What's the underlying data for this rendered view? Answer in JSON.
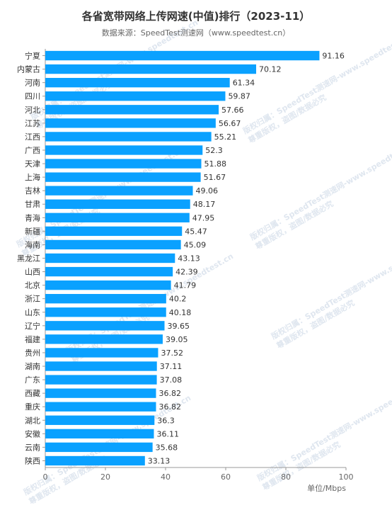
{
  "header": {
    "title": "各省宽带网络上传网速(中值)排行（2023-11）",
    "subtitle": "数据来源：SpeedTest测速网（www.speedtest.cn）"
  },
  "watermark": {
    "line1": "版权归属：SpeedTest测速网-www.speedtest.cn",
    "line2": "尊重版权，盗图/数据必究"
  },
  "colors": {
    "bar": "#0aa1ff",
    "axis": "#999999",
    "text": "#333333"
  },
  "chart_data": {
    "type": "bar",
    "orientation": "horizontal",
    "title": "各省宽带网络上传网速(中值)排行（2023-11）",
    "subtitle": "数据来源：SpeedTest测速网（www.speedtest.cn）",
    "unit_label": "单位/Mbps",
    "xlim": [
      0,
      100
    ],
    "xticks": [
      0,
      20,
      40,
      60,
      80,
      100
    ],
    "grid": false,
    "categories": [
      "宁夏",
      "内蒙古",
      "河南",
      "四川",
      "河北",
      "江苏",
      "江西",
      "广西",
      "天津",
      "上海",
      "吉林",
      "甘肃",
      "青海",
      "新疆",
      "海南",
      "黑龙江",
      "山西",
      "北京",
      "浙江",
      "山东",
      "辽宁",
      "福建",
      "贵州",
      "湖南",
      "广东",
      "西藏",
      "重庆",
      "湖北",
      "安徽",
      "云南",
      "陕西"
    ],
    "values": [
      91.16,
      70.12,
      61.34,
      59.87,
      57.66,
      56.67,
      55.21,
      52.3,
      51.88,
      51.67,
      49.06,
      48.17,
      47.95,
      45.47,
      45.09,
      43.13,
      42.39,
      41.79,
      40.2,
      40.18,
      39.65,
      39.05,
      37.52,
      37.11,
      37.08,
      36.82,
      36.82,
      36.3,
      36.11,
      35.68,
      33.13
    ]
  }
}
